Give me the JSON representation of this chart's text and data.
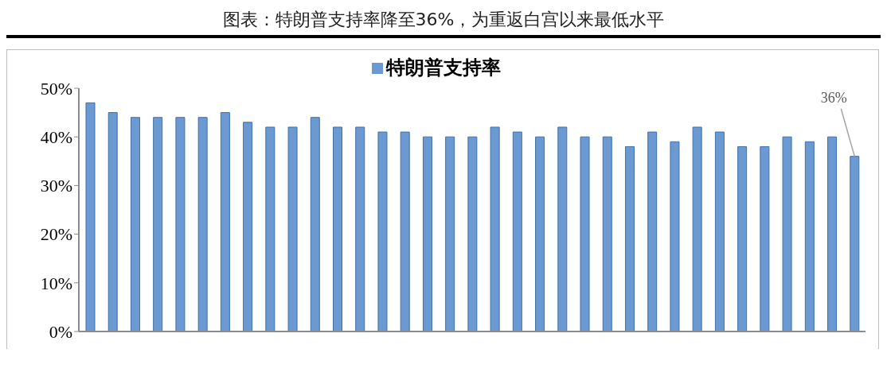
{
  "chart_data": {
    "type": "bar",
    "title": "图表：特朗普支持率降至36%，为重返白宫以来最低水平",
    "categories": [
      null,
      null,
      null,
      null,
      null,
      null,
      null,
      null,
      null,
      null,
      null,
      null,
      null,
      null,
      null,
      null,
      null,
      null,
      null,
      null,
      null,
      null,
      null,
      null,
      null,
      null,
      null,
      null,
      null,
      null,
      null,
      null,
      null,
      null,
      null
    ],
    "series": [
      {
        "name": "特朗普支持率",
        "color": "#6b9ad3",
        "values": [
          47,
          45,
          44,
          44,
          44,
          44,
          45,
          43,
          42,
          42,
          44,
          42,
          42,
          41,
          41,
          40,
          40,
          40,
          42,
          41,
          40,
          42,
          40,
          40,
          38,
          41,
          39,
          42,
          41,
          38,
          38,
          40,
          39,
          40,
          36
        ],
        "value_labels": [
          null,
          null,
          null,
          null,
          null,
          null,
          null,
          null,
          null,
          null,
          null,
          null,
          null,
          null,
          null,
          null,
          null,
          null,
          null,
          null,
          null,
          null,
          null,
          null,
          null,
          null,
          null,
          null,
          null,
          null,
          null,
          null,
          null,
          null,
          "36%"
        ]
      }
    ],
    "ylim": [
      0,
      50
    ],
    "yticks": [
      {
        "value": 0,
        "label": "0%"
      },
      {
        "value": 10,
        "label": "10%"
      },
      {
        "value": 20,
        "label": "20%"
      },
      {
        "value": 30,
        "label": "30%"
      },
      {
        "value": 40,
        "label": "40%"
      },
      {
        "value": 50,
        "label": "50%"
      }
    ],
    "legend": "top",
    "grid": false
  }
}
